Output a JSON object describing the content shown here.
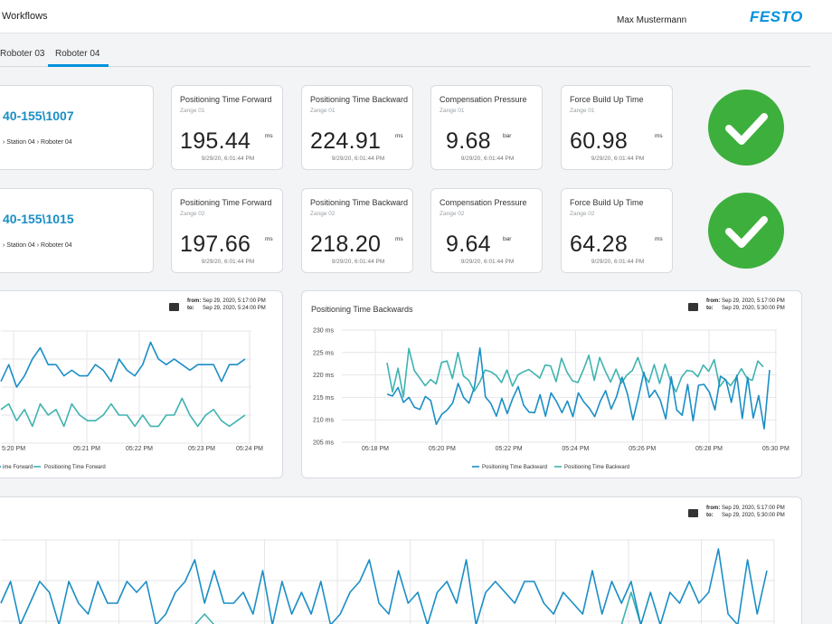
{
  "header": {
    "app_title": "Workflows",
    "user": "Max Mustermann",
    "logo": "FESTO"
  },
  "tabs": [
    {
      "label": "Roboter 03"
    },
    {
      "label": "Roboter 04",
      "active": true
    }
  ],
  "rows": [
    {
      "id_title": "40-155\\1007",
      "id_path": "› Station 04 › Roboter 04",
      "status": "check-icon",
      "kpis": [
        {
          "title": "Positioning Time Forward",
          "sub": "Zange 01",
          "value": "195.44",
          "unit": "ms",
          "time": "9/29/20, 6:01:44 PM"
        },
        {
          "title": "Positioning Time Backward",
          "sub": "Zange 01",
          "value": "224.91",
          "unit": "ms",
          "time": "9/29/20, 6:01:44 PM"
        },
        {
          "title": "Compensation Pressure",
          "sub": "Zange 01",
          "value": "9.68",
          "unit": "bar",
          "time": "9/29/20, 6:01:44 PM"
        },
        {
          "title": "Force Build Up Time",
          "sub": "Zange 01",
          "value": "60.98",
          "unit": "ms",
          "time": "9/29/20, 6:01:44 PM"
        }
      ]
    },
    {
      "id_title": "40-155\\1015",
      "id_path": "› Station 04 › Roboter 04",
      "status": "check-icon",
      "kpis": [
        {
          "title": "Positioning Time Forward",
          "sub": "Zange 02",
          "value": "197.66",
          "unit": "ms",
          "time": "9/29/20, 6:01:44 PM"
        },
        {
          "title": "Positioning Time Backward",
          "sub": "Zange 02",
          "value": "218.20",
          "unit": "ms",
          "time": "9/29/20, 6:01:44 PM"
        },
        {
          "title": "Compensation Pressure",
          "sub": "Zange 02",
          "value": "9.64",
          "unit": "bar",
          "time": "9/29/20, 6:01:44 PM"
        },
        {
          "title": "Force Build Up Time",
          "sub": "Zange 02",
          "value": "64.28",
          "unit": "ms",
          "time": "9/29/20, 6:01:44 PM"
        }
      ]
    }
  ],
  "colors": {
    "accent": "#0091dc",
    "series_dark": "#1a8ec6",
    "series_light": "#3fb3b0",
    "ok": "#3daf3d"
  },
  "charts": {
    "left": {
      "from_label": "from:",
      "from": "Sep 29, 2020, 5:17:00 PM",
      "to_label": "to:",
      "to": "Sep 29, 2020, 5:24:00 PM"
    },
    "right": {
      "from_label": "from:",
      "from": "Sep 29, 2020, 5:17:00 PM",
      "to_label": "to:",
      "to": "Sep 29, 2020, 5:30:00 PM"
    },
    "bottom": {
      "from_label": "from:",
      "from": "Sep 29, 2020, 5:17:00 PM",
      "to_label": "to:",
      "to": "Sep 29, 2020, 5:30:00 PM"
    }
  },
  "chart_data": [
    {
      "type": "line",
      "title": "",
      "x_ticks": [
        "5:20 PM",
        "05:21 PM",
        "05:22 PM",
        "05:23 PM",
        "05:24 PM"
      ],
      "legend": [
        "ime Forward",
        "Positioning Time Forward"
      ],
      "series": [
        {
          "name": "ime Forward",
          "color": "#1a8ec6",
          "values": [
            205,
            208,
            204,
            206,
            209,
            211,
            208,
            208,
            206,
            207,
            206,
            206,
            208,
            207,
            205,
            209,
            207,
            206,
            208,
            212,
            209,
            208,
            209,
            208,
            207,
            208,
            208,
            208,
            205,
            208,
            208,
            209
          ]
        },
        {
          "name": "Positioning Time Forward",
          "color": "#3fb3b0",
          "values": [
            200,
            201,
            198,
            200,
            197,
            201,
            199,
            200,
            197,
            201,
            199,
            198,
            198,
            199,
            201,
            199,
            199,
            197,
            199,
            197,
            197,
            199,
            199,
            202,
            199,
            197,
            199,
            200,
            198,
            197,
            198,
            199
          ]
        }
      ]
    },
    {
      "type": "line",
      "title": "Positioning Time Backwards",
      "ylabel": "ms",
      "ylim": [
        205,
        230
      ],
      "y_ticks": [
        "230 ms",
        "225 ms",
        "220 ms",
        "215 ms",
        "210 ms",
        "205 ms"
      ],
      "x_ticks": [
        "05:18 PM",
        "05:20 PM",
        "05:22 PM",
        "05:24 PM",
        "05:26 PM",
        "05:28 PM",
        "05:30 PM"
      ],
      "legend": [
        "Positioning Time Backward",
        "Positioning Time Backward"
      ],
      "series": [
        {
          "name": "Positioning Time Backward",
          "color": "#1a8ec6",
          "values": [
            215.7,
            215.3,
            217.2,
            213.9,
            215.0,
            212.8,
            212.3,
            215.2,
            214.3,
            209.0,
            211.2,
            212.2,
            213.7,
            218.1,
            215.0,
            213.7,
            217.4,
            226.0,
            215.1,
            213.6,
            210.8,
            214.8,
            211.4,
            214.8,
            217.4,
            213.2,
            211.7,
            211.6,
            215.6,
            210.8,
            216.0,
            214.1,
            211.6,
            214.2,
            210.7,
            216.0,
            214.0,
            212.6,
            210.7,
            214.1,
            216.5,
            212.4,
            215.2,
            219.5,
            215.7,
            210.0,
            215.1,
            220.6,
            215.0,
            216.6,
            214.4,
            210.2,
            219.6,
            212.2,
            211.0,
            217.9,
            209.8,
            217.7,
            217.9,
            216.1,
            212.2,
            219.7,
            218.9,
            213.9,
            219.9,
            210.3,
            219.5,
            210.4,
            215.4,
            208.0,
            221.1
          ]
        },
        {
          "name": "Positioning Time Backward",
          "color": "#3fb3b0",
          "values": [
            222.7,
            216.2,
            221.5,
            215.1,
            225.9,
            221.0,
            219.3,
            217.6,
            219.0,
            218.0,
            222.8,
            223.1,
            219.2,
            225.0,
            219.8,
            218.8,
            216.4,
            218.4,
            221.1,
            220.7,
            219.9,
            218.3,
            221.1,
            217.5,
            220.0,
            220.7,
            221.2,
            220.3,
            219.3,
            222.2,
            222.0,
            218.5,
            223.7,
            220.6,
            218.7,
            218.3,
            221.1,
            224.4,
            218.8,
            223.9,
            220.9,
            218.4,
            221.3,
            218.2,
            220.0,
            221.0,
            223.9,
            220.3,
            218.3,
            222.3,
            218.1,
            222.4,
            218.6,
            216.2,
            219.5,
            221.0,
            220.8,
            219.6,
            222.2,
            220.8,
            223.4,
            217.4,
            219.0,
            217.6,
            219.4,
            221.4,
            219.3,
            218.8,
            223.1,
            221.8
          ]
        }
      ]
    },
    {
      "type": "line",
      "title": "",
      "series": [
        {
          "name": "",
          "color": "#1a8ec6",
          "values": [
            3,
            5,
            1,
            3,
            5,
            4,
            1,
            5,
            3,
            2,
            5,
            3,
            3,
            5,
            4,
            5,
            1,
            2,
            4,
            5,
            7,
            3,
            6,
            3,
            3,
            4,
            2,
            6,
            1,
            5,
            2,
            4,
            2,
            5,
            1,
            2,
            4,
            5,
            7,
            3,
            2,
            6,
            3,
            4,
            1,
            4,
            5,
            3,
            7,
            1,
            4,
            5,
            4,
            3,
            5,
            5,
            3,
            2,
            4,
            3,
            2,
            6,
            2,
            5,
            3,
            5,
            1,
            4,
            1,
            4,
            3,
            5,
            3,
            4,
            8,
            2,
            1,
            7,
            2,
            6
          ]
        },
        {
          "name": "",
          "color": "#3fb3b0",
          "values": [
            1,
            1,
            1,
            1,
            1,
            1,
            1,
            1,
            1,
            1,
            1,
            1,
            1,
            1,
            1,
            1,
            1,
            1,
            1,
            1,
            1,
            2,
            1,
            1,
            1,
            1,
            1,
            1,
            1,
            1,
            1,
            1,
            1,
            1,
            1,
            1,
            1,
            1,
            1,
            1,
            1,
            1,
            1,
            1,
            1,
            1,
            1,
            1,
            1,
            1,
            1,
            1,
            1,
            1,
            1,
            1,
            1,
            1,
            1,
            1,
            1,
            1,
            1,
            1,
            1,
            4,
            1,
            1,
            1,
            1,
            1,
            1,
            1,
            1,
            1,
            1,
            1,
            1,
            1,
            1
          ]
        }
      ]
    }
  ]
}
